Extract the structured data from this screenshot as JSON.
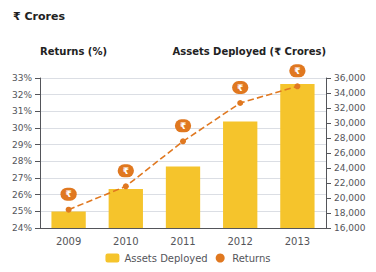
{
  "chart_data": {
    "type": "bar",
    "title": "₹ Crores",
    "categories": [
      "2009",
      "2010",
      "2011",
      "2012",
      "2013"
    ],
    "series": [
      {
        "name": "Assets Deployed",
        "type": "bar",
        "axis": "y2",
        "color": "#F5C42C",
        "values": [
          18200,
          21200,
          24200,
          30200,
          35200
        ]
      },
      {
        "name": "Returns",
        "type": "line",
        "color": "#E07820",
        "line_style": "dashed",
        "marker": "circle",
        "values": [
          25.1,
          26.5,
          29.2,
          31.5,
          32.5
        ],
        "annotations": [
          "₹",
          "₹",
          "₹",
          "₹",
          "₹"
        ]
      }
    ],
    "ylabel": "Returns (%)",
    "y2label": "Assets Deployed (₹ Crores)",
    "ylim": [
      24,
      33
    ],
    "yticks": [
      {
        "value": 24,
        "label": "24%"
      },
      {
        "value": 25,
        "label": "25%"
      },
      {
        "value": 26,
        "label": "26%"
      },
      {
        "value": 27,
        "label": "27%"
      },
      {
        "value": 28,
        "label": "28%"
      },
      {
        "value": 29,
        "label": "29%"
      },
      {
        "value": 30,
        "label": "30%"
      },
      {
        "value": 31,
        "label": "31%"
      },
      {
        "value": 32,
        "label": "32%"
      },
      {
        "value": 33,
        "label": "33%"
      }
    ],
    "y2lim": [
      16000,
      36000
    ],
    "y2ticks": [
      {
        "value": 16000,
        "label": "16,000"
      },
      {
        "value": 18000,
        "label": "18,000"
      },
      {
        "value": 20000,
        "label": "20,000"
      },
      {
        "value": 22000,
        "label": "22,000"
      },
      {
        "value": 24000,
        "label": "24,000"
      },
      {
        "value": 26000,
        "label": "26,000"
      },
      {
        "value": 28000,
        "label": "28,000"
      },
      {
        "value": 30000,
        "label": "30,000"
      },
      {
        "value": 32000,
        "label": "32,000"
      },
      {
        "value": 34000,
        "label": "34,000"
      },
      {
        "value": 36000,
        "label": "36,000"
      }
    ],
    "grid": true,
    "legend": "bottom"
  }
}
